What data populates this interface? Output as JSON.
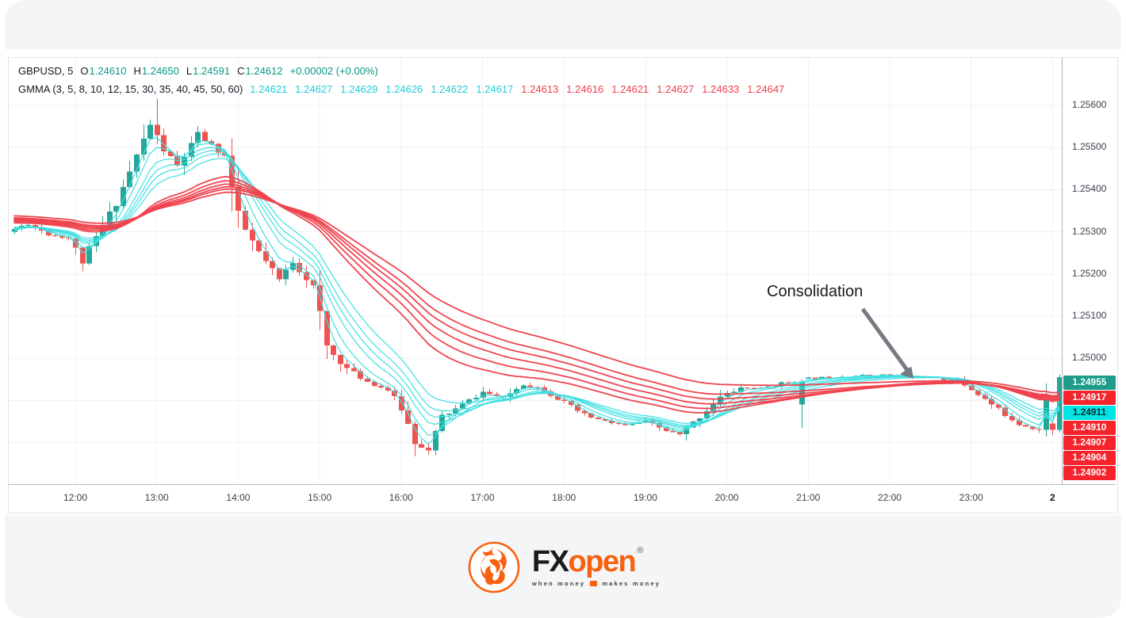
{
  "legend": {
    "symbol": "GBPUSD, 5",
    "ohlc": {
      "o_label": "O",
      "o_value": "1.24610",
      "h_label": "H",
      "h_value": "1.24650",
      "l_label": "L",
      "l_value": "1.24591",
      "c_label": "C",
      "c_value": "1.24612",
      "change": "+0.00002 (+0.00%)"
    },
    "gmma_label": "GMMA (3, 5, 8, 10, 12, 15, 30, 35, 40, 45, 50, 60)",
    "gmma_short_values": [
      "1.24621",
      "1.24627",
      "1.24629",
      "1.24626",
      "1.24622",
      "1.24617"
    ],
    "gmma_long_values": [
      "1.24613",
      "1.24616",
      "1.24621",
      "1.24627",
      "1.24633",
      "1.24647"
    ]
  },
  "annotation": {
    "text": "Consolidation"
  },
  "price_axis": {
    "badges": [
      {
        "text": "1.24955",
        "bg": "#1d9b8b",
        "fg": "#ffffff"
      },
      {
        "text": "1.24917",
        "bg": "#f5242c",
        "fg": "#ffffff"
      },
      {
        "text": "1.24911",
        "bg": "#00e4e4",
        "fg": "#0b2b2b"
      },
      {
        "text": "1.24910",
        "bg": "#f5242c",
        "fg": "#ffffff"
      },
      {
        "text": "1.24907",
        "bg": "#f5242c",
        "fg": "#ffffff"
      },
      {
        "text": "1.24904",
        "bg": "#f5242c",
        "fg": "#ffffff"
      },
      {
        "text": "1.24902",
        "bg": "#f5242c",
        "fg": "#ffffff"
      }
    ]
  },
  "chart_data": {
    "type": "candlestick",
    "symbol": "GBPUSD",
    "interval_minutes": 5,
    "title": "GBPUSD 5-minute chart with GMMA indicator",
    "ylim": [
      1.247,
      1.2568
    ],
    "y_ticks": [
      "1.25600",
      "1.25500",
      "1.25400",
      "1.25300",
      "1.25200",
      "1.25100",
      "1.25000"
    ],
    "grid_prices": [
      1.256,
      1.255,
      1.254,
      1.253,
      1.252,
      1.251,
      1.25,
      1.249,
      1.248
    ],
    "x_ticks": [
      "12:00",
      "13:00",
      "14:00",
      "15:00",
      "16:00",
      "17:00",
      "18:00",
      "19:00",
      "20:00",
      "21:00",
      "22:00",
      "23:00",
      "2"
    ],
    "session_start": "11:15",
    "session_end": "00:05",
    "price_path": [
      [
        "11:15",
        1.253
      ],
      [
        "11:30",
        1.2532
      ],
      [
        "11:45",
        1.25295
      ],
      [
        "12:00",
        1.25285
      ],
      [
        "12:10",
        1.2523
      ],
      [
        "12:20",
        1.25285
      ],
      [
        "12:35",
        1.2537
      ],
      [
        "12:50",
        1.2548
      ],
      [
        "13:00",
        1.25555
      ],
      [
        "13:10",
        1.25495
      ],
      [
        "13:20",
        1.25455
      ],
      [
        "13:35",
        1.2553
      ],
      [
        "13:45",
        1.25505
      ],
      [
        "13:55",
        1.2548
      ],
      [
        "14:05",
        1.2533
      ],
      [
        "14:20",
        1.2525
      ],
      [
        "14:35",
        1.25185
      ],
      [
        "14:45",
        1.2523
      ],
      [
        "15:00",
        1.2517
      ],
      [
        "15:10",
        1.25025
      ],
      [
        "15:25",
        1.24975
      ],
      [
        "15:40",
        1.24945
      ],
      [
        "15:55",
        1.24925
      ],
      [
        "16:05",
        1.2488
      ],
      [
        "16:15",
        1.24805
      ],
      [
        "16:25",
        1.2478
      ],
      [
        "16:35",
        1.2486
      ],
      [
        "16:50",
        1.2489
      ],
      [
        "17:05",
        1.2492
      ],
      [
        "17:20",
        1.24905
      ],
      [
        "17:35",
        1.2494
      ],
      [
        "17:50",
        1.24925
      ],
      [
        "18:05",
        1.24895
      ],
      [
        "18:20",
        1.24865
      ],
      [
        "18:35",
        1.2485
      ],
      [
        "18:50",
        1.2484
      ],
      [
        "19:05",
        1.2485
      ],
      [
        "19:20",
        1.24828
      ],
      [
        "19:30",
        1.24818
      ],
      [
        "19:45",
        1.24862
      ],
      [
        "20:00",
        1.24908
      ],
      [
        "20:15",
        1.2493
      ],
      [
        "20:30",
        1.24928
      ],
      [
        "20:45",
        1.2494
      ],
      [
        "21:00",
        1.2495
      ],
      [
        "21:30",
        1.24958
      ],
      [
        "22:00",
        1.2496
      ],
      [
        "22:30",
        1.24955
      ],
      [
        "22:55",
        1.24948
      ],
      [
        "23:10",
        1.24915
      ],
      [
        "23:25",
        1.24878
      ],
      [
        "23:40",
        1.24845
      ],
      [
        "23:55",
        1.2483
      ],
      [
        "00:05",
        1.24955
      ]
    ],
    "notable_candles": [
      {
        "time": "13:00",
        "high": 1.25615
      },
      {
        "time": "16:25",
        "low": 1.2477
      },
      {
        "time": "20:55",
        "open": 1.2489,
        "close": 1.24945,
        "low": 1.24835,
        "high": 1.2495
      },
      {
        "time": "00:00",
        "open": 1.24845,
        "close": 1.2483,
        "high": 1.24852,
        "low": 1.24818
      },
      {
        "time": "00:05",
        "open": 1.2483,
        "close": 1.24955,
        "high": 1.24962,
        "low": 1.24824
      }
    ],
    "indicator": {
      "name": "GMMA",
      "short_periods": [
        3,
        5,
        8,
        10,
        12,
        15
      ],
      "long_periods": [
        30,
        35,
        40,
        45,
        50,
        60
      ]
    },
    "last_price_labels": [
      "1.24955",
      "1.24917",
      "1.24911",
      "1.24910",
      "1.24907",
      "1.24904",
      "1.24902"
    ],
    "legend_position": "top-left",
    "grid": true
  },
  "logo": {
    "fx": "FX",
    "open": "open",
    "reg": "®",
    "tagline_left": "when money",
    "tagline_right": "makes money"
  },
  "colors": {
    "up": "#26a69a",
    "down": "#ef5350",
    "gmma_short": "#3ddfe1",
    "gmma_long": "#ef444f",
    "legend_teal": "#089981",
    "legend_cyan": "#26cbd8",
    "legend_red": "#ef404d",
    "text_dark": "#131722",
    "axis_text": "#3c404b",
    "grid": "#eef1f8",
    "border": "#e0e3eb",
    "axis_line": "#b2b5be",
    "band": "#f4f5f7",
    "orange": "#f8610f",
    "arrow": "#757b81"
  }
}
